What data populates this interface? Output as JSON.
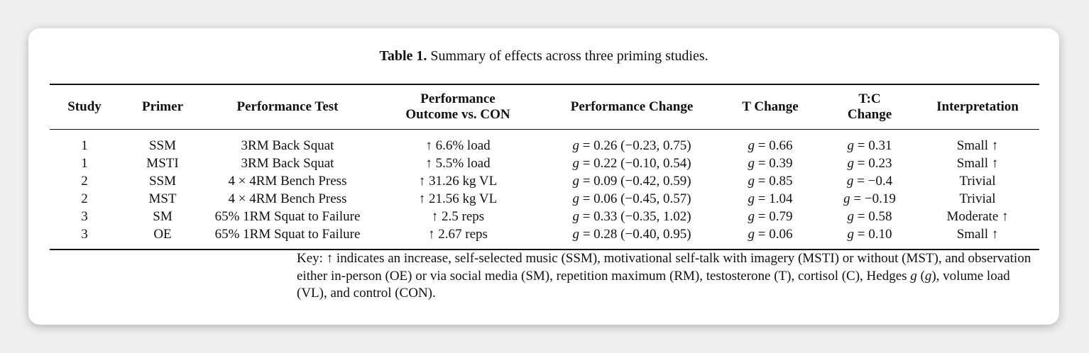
{
  "caption": {
    "label": "Table 1.",
    "text": " Summary of effects across three priming studies."
  },
  "g_symbol": "g",
  "headers": {
    "study": "Study",
    "primer": "Primer",
    "test": "Performance Test",
    "outcome_line1": "Performance",
    "outcome_line2": "Outcome vs. CON",
    "perf_change": "Performance Change",
    "t_change": "T Change",
    "tc_line1": "T:C",
    "tc_line2": "Change",
    "interp": "Interpretation"
  },
  "rows": [
    {
      "study": "1",
      "primer": "SSM",
      "test": "3RM Back Squat",
      "outcome": "↑ 6.6% load",
      "perf": " = 0.26 (−0.23, 0.75)",
      "t": " = 0.66",
      "tc": " = 0.31",
      "interp": "Small ↑"
    },
    {
      "study": "1",
      "primer": "MSTI",
      "test": "3RM Back Squat",
      "outcome": "↑ 5.5% load",
      "perf": " = 0.22 (−0.10, 0.54)",
      "t": " = 0.39",
      "tc": " = 0.23",
      "interp": "Small ↑"
    },
    {
      "study": "2",
      "primer": "SSM",
      "test": "4 × 4RM Bench Press",
      "outcome": "↑ 31.26 kg VL",
      "perf": " = 0.09 (−0.42, 0.59)",
      "t": " = 0.85",
      "tc": " = −0.4",
      "interp": "Trivial"
    },
    {
      "study": "2",
      "primer": "MST",
      "test": "4 × 4RM Bench Press",
      "outcome": "↑ 21.56 kg VL",
      "perf": " = 0.06 (−0.45, 0.57)",
      "t": " = 1.04",
      "tc": " = −0.19",
      "interp": "Trivial"
    },
    {
      "study": "3",
      "primer": "SM",
      "test": "65% 1RM Squat to Failure",
      "outcome": "↑ 2.5 reps",
      "perf": " = 0.33 (−0.35, 1.02)",
      "t": " = 0.79",
      "tc": " = 0.58",
      "interp": "Moderate ↑"
    },
    {
      "study": "3",
      "primer": "OE",
      "test": "65% 1RM Squat to Failure",
      "outcome": "↑ 2.67 reps",
      "perf": " = 0.28 (−0.40, 0.95)",
      "t": " = 0.06",
      "tc": " = 0.10",
      "interp": "Small ↑"
    }
  ],
  "key": {
    "part1": "Key: ↑ indicates an increase, self-selected music (SSM), motivational self-talk with imagery (MSTI) or without (MST), and observation either in-person (OE) or via social media (SM), repetition maximum (RM), testosterone (T), cortisol (C), Hedges ",
    "g1": "g",
    "part2": " (",
    "g2": "g",
    "part3": "), volume load (VL), and control (CON)."
  }
}
